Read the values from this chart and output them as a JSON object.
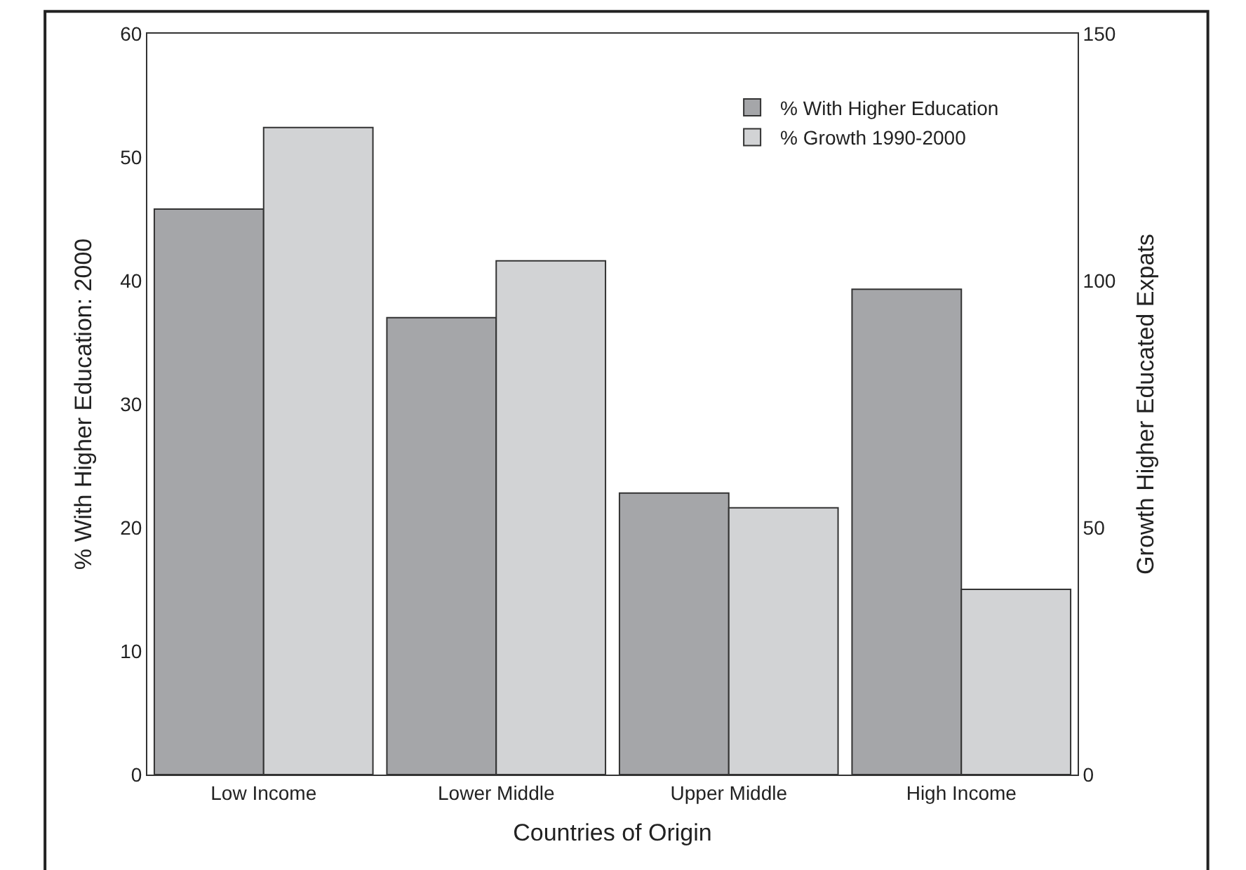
{
  "chart_data": {
    "type": "bar",
    "xlabel": "Countries of Origin",
    "ylabel": "% With Higher Education: 2000",
    "y2label": "Growth Higher Educated Expats",
    "categories": [
      "Low Income",
      "Lower Middle",
      "Upper Middle",
      "High Income"
    ],
    "series": [
      {
        "name": "% With Higher Education",
        "color": "#a5a6a9",
        "values": [
          45.8,
          37.0,
          22.8,
          39.3
        ]
      },
      {
        "name": "% Growth 1990-2000",
        "color": "#d2d3d5",
        "values": [
          131,
          104,
          54,
          37.5
        ],
        "axis": "y2"
      }
    ],
    "ylim": [
      0,
      60
    ],
    "yticks": [
      0,
      10,
      20,
      30,
      40,
      50,
      60
    ],
    "y2lim": [
      0,
      150
    ],
    "y2ticks": [
      0,
      50,
      100,
      150
    ],
    "legend": "top right"
  }
}
